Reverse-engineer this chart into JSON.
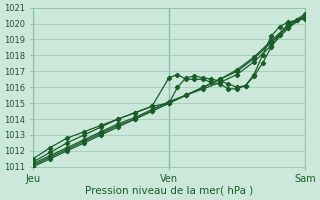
{
  "title": "",
  "xlabel": "Pression niveau de la mer( hPa )",
  "ylim": [
    1011,
    1021
  ],
  "xlim": [
    0,
    96
  ],
  "yticks": [
    1011,
    1012,
    1013,
    1014,
    1015,
    1016,
    1017,
    1018,
    1019,
    1020,
    1021
  ],
  "xtick_positions": [
    0,
    48,
    96
  ],
  "xtick_labels": [
    "Jeu",
    "Ven",
    "Sam"
  ],
  "bg_color": "#cce8da",
  "grid_color": "#8bbfaa",
  "line_color": "#1a5c2a",
  "lines": [
    {
      "x": [
        0,
        6,
        12,
        18,
        24,
        30,
        36,
        42,
        48,
        54,
        60,
        66,
        72,
        78,
        84,
        90,
        96
      ],
      "y": [
        1011.2,
        1011.7,
        1012.2,
        1012.7,
        1013.2,
        1013.7,
        1014.1,
        1014.6,
        1015.1,
        1015.5,
        1016.0,
        1016.5,
        1017.0,
        1017.8,
        1018.8,
        1019.8,
        1020.5
      ]
    },
    {
      "x": [
        0,
        6,
        12,
        18,
        24,
        30,
        36,
        42,
        48,
        54,
        60,
        66,
        72,
        78,
        84,
        90,
        96
      ],
      "y": [
        1011.0,
        1011.5,
        1012.0,
        1012.5,
        1013.0,
        1013.5,
        1014.0,
        1014.5,
        1015.0,
        1015.5,
        1016.0,
        1016.5,
        1017.1,
        1017.9,
        1018.9,
        1019.9,
        1020.6
      ]
    },
    {
      "x": [
        0,
        6,
        12,
        18,
        24,
        30,
        36,
        42,
        48,
        51,
        54,
        57,
        60,
        63,
        66,
        69,
        72,
        75,
        78,
        81,
        84,
        87,
        90,
        93,
        96
      ],
      "y": [
        1011.5,
        1012.2,
        1012.8,
        1013.2,
        1013.6,
        1014.0,
        1014.4,
        1014.8,
        1016.6,
        1016.8,
        1016.5,
        1016.5,
        1016.5,
        1016.3,
        1016.2,
        1015.9,
        1015.9,
        1016.1,
        1016.8,
        1018.0,
        1019.2,
        1019.8,
        1020.1,
        1020.2,
        1020.3
      ]
    },
    {
      "x": [
        0,
        6,
        12,
        18,
        24,
        30,
        36,
        42,
        48,
        51,
        54,
        57,
        60,
        63,
        66,
        69,
        72,
        75,
        78,
        81,
        84,
        87,
        90,
        93,
        96
      ],
      "y": [
        1011.3,
        1011.9,
        1012.5,
        1013.0,
        1013.5,
        1014.0,
        1014.4,
        1014.8,
        1015.0,
        1016.0,
        1016.6,
        1016.7,
        1016.6,
        1016.5,
        1016.4,
        1016.2,
        1016.0,
        1016.1,
        1016.7,
        1017.5,
        1018.5,
        1019.3,
        1020.0,
        1020.2,
        1020.4
      ]
    },
    {
      "x": [
        0,
        6,
        12,
        18,
        24,
        30,
        36,
        42,
        48,
        54,
        60,
        66,
        72,
        78,
        84,
        90,
        96
      ],
      "y": [
        1011.1,
        1011.6,
        1012.1,
        1012.6,
        1013.1,
        1013.6,
        1014.0,
        1014.5,
        1015.0,
        1015.5,
        1015.9,
        1016.3,
        1016.8,
        1017.6,
        1018.6,
        1019.7,
        1020.5
      ]
    }
  ]
}
